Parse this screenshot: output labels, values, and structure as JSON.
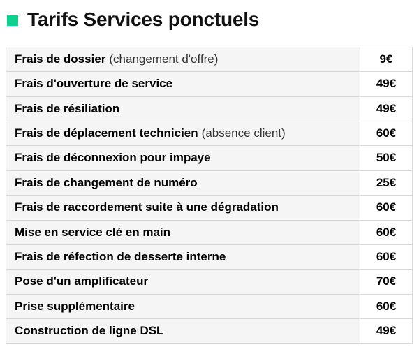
{
  "page": {
    "title": "Tarifs Services ponctuels",
    "accent_color": "#0ed18e"
  },
  "table": {
    "rows": [
      {
        "label": "Frais de dossier",
        "note": "(changement d'offre)",
        "price": "9€"
      },
      {
        "label": "Frais d'ouverture de service",
        "note": "",
        "price": "49€"
      },
      {
        "label": "Frais de résiliation",
        "note": "",
        "price": "49€"
      },
      {
        "label": "Frais de déplacement technicien",
        "note": "(absence client)",
        "price": "60€"
      },
      {
        "label": "Frais de déconnexion pour impaye",
        "note": "",
        "price": "50€"
      },
      {
        "label": "Frais de changement de numéro",
        "note": "",
        "price": "25€"
      },
      {
        "label": "Frais de raccordement suite à une dégradation",
        "note": "",
        "price": "60€"
      },
      {
        "label": "Mise en service clé en main",
        "note": "",
        "price": "60€"
      },
      {
        "label": "Frais de réfection de desserte interne",
        "note": "",
        "price": "60€"
      },
      {
        "label": "Pose d'un amplificateur",
        "note": "",
        "price": "70€"
      },
      {
        "label": "Prise supplémentaire",
        "note": "",
        "price": "60€"
      },
      {
        "label": "Construction de ligne DSL",
        "note": "",
        "price": "49€"
      }
    ]
  }
}
